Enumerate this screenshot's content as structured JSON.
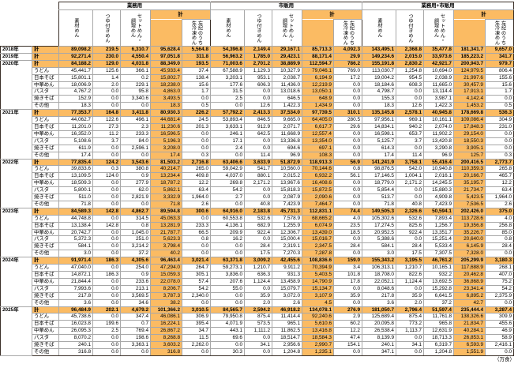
{
  "unit_note": "（万食）",
  "colors": {
    "accent_orange": "#FBBB63",
    "border_dark": "#3B3028",
    "border_light": "#A8A8A8"
  },
  "column_groups": [
    {
      "label": "業務用"
    },
    {
      "label": "市販用"
    },
    {
      "label": "業務用+市販用"
    }
  ],
  "sub_columns": [
    "素材めん",
    "つゆ付きめん",
    "セットめん・\n調理めん",
    "計",
    "左記のうち\n生冷凍めん"
  ],
  "row_categories": [
    "計",
    "うどん",
    "日本そば",
    "中華めん",
    "パスタ",
    "焼きそば",
    "その他"
  ],
  "years": [
    {
      "year": "2018年",
      "rows": [
        {
          "label": "計",
          "values": [
            "89,098.2",
            "219.5",
            "6,310.7",
            "95,628.4",
            "5,564.8",
            "54,396.8",
            "2,149.4",
            "29,167.1",
            "85,713.3",
            "4,092.3",
            "143,495.1",
            "2,368.8",
            "35,477.8",
            "181,341.7",
            "9,657.0"
          ]
        }
      ]
    },
    {
      "year": "2019年",
      "rows": [
        {
          "label": "計",
          "values": [
            "92,271.4",
            "230.0",
            "4,550.4",
            "97,051.8",
            "311.8",
            "56,963.2",
            "1,785.0",
            "29,423.1",
            "88,171.4",
            "29.9",
            "149,234.6",
            "2,015.0",
            "33,973.6",
            "185,223.2",
            "341.7"
          ]
        }
      ]
    },
    {
      "year": "2020年",
      "rows": [
        {
          "label": "計",
          "values": [
            "84,188.2",
            "129.0",
            "4,031.8",
            "88,349.0",
            "193.5",
            "71,003.6",
            "2,701.2",
            "38,889.9",
            "112,594.7",
            "786.2",
            "155,191.8",
            "2,830.2",
            "42,921.7",
            "200,943.7",
            "979.7"
          ]
        },
        {
          "label": "うどん",
          "values": [
            "45,441.7",
            "125.6",
            "366.1",
            "45,933.4",
            "37.4",
            "67,588.9",
            "1,129.3",
            "10,327.9",
            "79,046.1",
            "769.0",
            "113,030.7",
            "1,254.8",
            "10,694.0",
            "124,979.5",
            "806.4"
          ]
        },
        {
          "label": "日本そば",
          "values": [
            "15,801.1",
            "1.4",
            "0.2",
            "15,802.7",
            "138.4",
            "3,203.1",
            "953.1",
            "2,038.7",
            "6,194.9",
            "17.2",
            "19,004.2",
            "954.5",
            "2,038.9",
            "21,997.6",
            "155.6"
          ]
        },
        {
          "label": "中華めん",
          "values": [
            "18,006.9",
            "2.0",
            "229.1",
            "18,238.0",
            "15.6",
            "177.6",
            "606.3",
            "11,436.0",
            "12,219.9",
            "0.0",
            "18,184.6",
            "608.3",
            "11,665.0",
            "30,457.9",
            "15.6"
          ]
        },
        {
          "label": "パスタ",
          "values": [
            "4,767.2",
            "0.0",
            "95.8",
            "4,863.0",
            "1.7",
            "31.5",
            "0.0",
            "13,018.6",
            "13,050.1",
            "0.0",
            "4,798.7",
            "0.0",
            "13,114.4",
            "17,913.1",
            "1.7"
          ]
        },
        {
          "label": "焼きそば",
          "values": [
            "152.9",
            "0.0",
            "3,340.6",
            "3,493.5",
            "0.0",
            "2.5",
            "0.0",
            "646.5",
            "648.9",
            "0.0",
            "155.3",
            "0.0",
            "3,987.1",
            "4,142.4",
            "0.0"
          ]
        },
        {
          "label": "その他",
          "values": [
            "18.3",
            "0.0",
            "0.0",
            "18.3",
            "0.5",
            "0.0",
            "12.6",
            "1,422.3",
            "1,434.9",
            "0.0",
            "18.3",
            "12.6",
            "1,422.3",
            "1,453.2",
            "0.5"
          ]
        }
      ]
    },
    {
      "year": "2021年",
      "rows": [
        {
          "label": "計",
          "values": [
            "77,353.7",
            "164.8",
            "3,411.8",
            "80,930.3",
            "226.2",
            "57,792.2",
            "2,413.3",
            "37,534.0",
            "97,739.5",
            "310.1",
            "135,145.8",
            "2,578.1",
            "40,945.8",
            "178,669.8",
            "536.3"
          ]
        },
        {
          "label": "うどん",
          "values": [
            "44,062.7",
            "122.6",
            "496.1",
            "44,681.4",
            "24.5",
            "53,893.4",
            "846.5",
            "9,665.0",
            "64,405.0",
            "280.5",
            "97,956.1",
            "969.1",
            "10,161.1",
            "109,086.4",
            "304.9"
          ]
        },
        {
          "label": "日本そば",
          "values": [
            "11,201.0",
            "27.3",
            "2.3",
            "11,230.6",
            "201.3",
            "3,633.1",
            "912.9",
            "2,071.7",
            "6,617.7",
            "29.6",
            "14,834.1",
            "940.2",
            "2,074.0",
            "17,848.3",
            "231.0"
          ]
        },
        {
          "label": "中華めん",
          "values": [
            "16,352.0",
            "11.2",
            "233.3",
            "16,596.5",
            "0.0",
            "246.1",
            "642.5",
            "11,668.9",
            "12,557.4",
            "0.0",
            "16,598.1",
            "653.7",
            "11,902.2",
            "29,154.0",
            "0.0"
          ]
        },
        {
          "label": "パスタ",
          "values": [
            "5,108.6",
            "3.7",
            "84.0",
            "5,196.3",
            "0.0",
            "17.1",
            "0.0",
            "13,336.8",
            "13,354.0",
            "0.0",
            "5,125.7",
            "3.7",
            "13,420.8",
            "18,550.3",
            "0.0"
          ]
        },
        {
          "label": "焼きそば",
          "values": [
            "611.9",
            "0.0",
            "2,596.1",
            "3,208.0",
            "0.0",
            "2.4",
            "0.0",
            "694.6",
            "697.1",
            "0.0",
            "614.3",
            "0.0",
            "3,290.8",
            "3,905.1",
            "0.0"
          ]
        },
        {
          "label": "その他",
          "values": [
            "17.4",
            "0.0",
            "0.0",
            "17.4",
            "0.3",
            "0.0",
            "11.4",
            "96.9",
            "108.3",
            "0.0",
            "17.4",
            "11.4",
            "96.9",
            "125.7",
            "0.3"
          ]
        }
      ]
    },
    {
      "year": "2022年",
      "rows": [
        {
          "label": "計",
          "values": [
            "77,835.4",
            "124.2",
            "3,543.6",
            "81,503.2",
            "2,716.8",
            "63,406.6",
            "3,633.9",
            "51,872.9",
            "118,913.3",
            "56.9",
            "141,241.9",
            "3,758.1",
            "55,416.4",
            "200,416.5",
            "2,773.7"
          ]
        },
        {
          "label": "うどん",
          "values": [
            "39,833.6",
            "0.3",
            "380.8",
            "40,214.7",
            "265.0",
            "59,042.9",
            "541.7",
            "10,560.0",
            "70,144.6",
            "0.8",
            "98,876.5",
            "542.0",
            "10,940.8",
            "110,359.3",
            "265.8"
          ]
        },
        {
          "label": "日本そば",
          "values": [
            "13,109.5",
            "124.0",
            "0.9",
            "13,234.4",
            "409.8",
            "4,037.0",
            "880.1",
            "2,015.2",
            "6,932.2",
            "56.1",
            "17,146.5",
            "1,004.1",
            "2,016.1",
            "20,166.7",
            "465.7"
          ]
        },
        {
          "label": "中華めん",
          "values": [
            "18,509.3",
            "0.0",
            "277.9",
            "18,787.2",
            "12.2",
            "269.8",
            "2,171.2",
            "13,967.6",
            "16,408.6",
            "0.0",
            "18,779.0",
            "2,171.2",
            "14,245.5",
            "35,195.7",
            "12.2"
          ]
        },
        {
          "label": "パスタ",
          "values": [
            "5,800.1",
            "0.0",
            "62.0",
            "5,862.1",
            "63.4",
            "54.2",
            "0.0",
            "15,818.3",
            "15,872.5",
            "0.0",
            "5,854.4",
            "0.0",
            "15,880.3",
            "21,734.7",
            "63.4"
          ]
        },
        {
          "label": "焼きそば",
          "values": [
            "511.0",
            "0.0",
            "2,821.9",
            "3,332.9",
            "1,964.0",
            "2.7",
            "0.0",
            "2,087.9",
            "2,090.6",
            "0.0",
            "513.7",
            "0.0",
            "4,909.8",
            "5,423.5",
            "1,964.0"
          ]
        },
        {
          "label": "その他",
          "values": [
            "71.8",
            "0.0",
            "0.0",
            "71.8",
            "2.6",
            "0.0",
            "40.8",
            "7,423.9",
            "7,464.7",
            "0.0",
            "71.8",
            "40.8",
            "7,423.9",
            "7,536.5",
            "2.6"
          ]
        }
      ]
    },
    {
      "year": "2023年",
      "rows": [
        {
          "label": "計",
          "values": [
            "84,589.3",
            "142.8",
            "4,862.7",
            "89,594.8",
            "300.6",
            "64,916.0",
            "2,183.8",
            "45,731.3",
            "112,831.1",
            "74.4",
            "149,505.3",
            "2,326.6",
            "50,594.1",
            "202,426.0",
            "375.0"
          ]
        },
        {
          "label": "うどん",
          "values": [
            "44,748.8",
            "0.0",
            "314.5",
            "45,063.3",
            "0.0",
            "60,553.8",
            "532.6",
            "7,578.9",
            "68,665.2",
            "4.0",
            "105,302.6",
            "532.6",
            "7,893.4",
            "113,728.6",
            "4.0"
          ]
        },
        {
          "label": "日本そば",
          "values": [
            "13,138.4",
            "142.8",
            "0.8",
            "13,281.9",
            "233.3",
            "4,136.1",
            "682.9",
            "1,255.9",
            "6,074.9",
            "23.5",
            "17,274.5",
            "825.6",
            "1,256.7",
            "19,356.8",
            "256.8"
          ]
        },
        {
          "label": "中華めん",
          "values": [
            "20,742.7",
            "0.0",
            "1,045.0",
            "21,787.7",
            "66.5",
            "209.9",
            "922.4",
            "12,306.7",
            "13,439.0",
            "18.5",
            "20,952.5",
            "922.4",
            "13,351.7",
            "35,226.7",
            "85.0"
          ]
        },
        {
          "label": "パスタ",
          "values": [
            "5,372.3",
            "0.0",
            "251.0",
            "5,623.3",
            "0.8",
            "16.2",
            "0.0",
            "15,000.4",
            "15,016.7",
            "0.0",
            "5,388.6",
            "0.0",
            "15,251.4",
            "20,640.0",
            "0.8"
          ]
        },
        {
          "label": "焼きそば",
          "values": [
            "584.1",
            "0.0",
            "3,214.2",
            "3,798.4",
            "0.0",
            "0.0",
            "28.4",
            "2,319.1",
            "2,347.5",
            "28.4",
            "584.1",
            "28.4",
            "5,533.4",
            "6,145.9",
            "28.4"
          ]
        },
        {
          "label": "その他",
          "values": [
            "3.0",
            "0.0",
            "37.2",
            "40.2",
            "0.0",
            "0.0",
            "17.5",
            "7,270.3",
            "7,287.8",
            "0.0",
            "3.0",
            "17.5",
            "7,307.5",
            "7,328.0",
            "0.0"
          ]
        }
      ]
    },
    {
      "year": "2024年",
      "rows": [
        {
          "label": "計",
          "values": [
            "91,971.4",
            "186.3",
            "4,305.6",
            "96,463.4",
            "3,021.4",
            "63,371.8",
            "3,009.2",
            "42,455.6",
            "108,836.6",
            "159.0",
            "155,343.2",
            "3,195.5",
            "46,761.2",
            "205,299.9",
            "3,180.3"
          ]
        },
        {
          "label": "うどん",
          "values": [
            "47,040.0",
            "0.0",
            "254.0",
            "47,294.0",
            "264.7",
            "59,273.1",
            "1,210.7",
            "9,911.2",
            "70,394.9",
            "3.4",
            "106,313.1",
            "1,210.7",
            "10,165.1",
            "117,688.9",
            "268.1"
          ]
        },
        {
          "label": "日本そば",
          "values": [
            "14,872.1",
            "186.3",
            "0.9",
            "15,059.3",
            "305.1",
            "3,836.0",
            "636.3",
            "931.3",
            "5,403.5",
            "101.8",
            "18,708.0",
            "822.6",
            "932.2",
            "20,462.8",
            "407.0"
          ]
        },
        {
          "label": "中華めん",
          "values": [
            "21,844.4",
            "0.0",
            "233.6",
            "22,078.0",
            "57.4",
            "207.6",
            "1,124.4",
            "13,458.9",
            "14,790.9",
            "17.8",
            "22,052.1",
            "1,124.4",
            "13,692.5",
            "36,868.9",
            "75.2"
          ]
        },
        {
          "label": "パスタ",
          "values": [
            "7,993.6",
            "0.0",
            "213.1",
            "8,206.7",
            "54.2",
            "55.0",
            "0.0",
            "15,079.7",
            "15,134.7",
            "0.0",
            "8,048.6",
            "0.0",
            "15,292.8",
            "23,341.4",
            "54.2"
          ]
        },
        {
          "label": "焼きそば",
          "values": [
            "217.8",
            "0.0",
            "3,569.5",
            "3,787.3",
            "2,340.0",
            "0.0",
            "35.9",
            "3,072.0",
            "3,107.9",
            "35.9",
            "217.8",
            "35.9",
            "6,641.5",
            "6,895.2",
            "2,375.9"
          ]
        },
        {
          "label": "その他",
          "values": [
            "3.6",
            "0.0",
            "34.6",
            "38.2",
            "0.0",
            "0.0",
            "2.0",
            "2.6",
            "4.5",
            "0.0",
            "3.6",
            "2.0",
            "37.2",
            "42.7",
            "0.0"
          ]
        }
      ]
    },
    {
      "year": "2025年",
      "rows": [
        {
          "label": "計",
          "values": [
            "96,484.9",
            "202.1",
            "4,679.2",
            "101,366.2",
            "3,010.5",
            "84,565.7",
            "2,594.2",
            "46,918.2",
            "134,078.1",
            "276.9",
            "181,050.7",
            "2,796.4",
            "51,597.4",
            "235,444.4",
            "3,287.4"
          ]
        },
        {
          "label": "うどん",
          "values": [
            "45,738.6",
            "0.0",
            "347.4",
            "46,086.1",
            "306.9",
            "79,950.8",
            "875.4",
            "11,414.4",
            "92,240.6",
            "2.9",
            "125,689.4",
            "875.4",
            "11,761.8",
            "138,326.6",
            "309.9"
          ]
        },
        {
          "label": "日本そば",
          "values": [
            "16,023.8",
            "199.6",
            "0.7",
            "16,224.1",
            "395.4",
            "4,071.9",
            "573.5",
            "965.1",
            "5,610.6",
            "60.2",
            "20,095.8",
            "773.2",
            "965.8",
            "21,834.7",
            "455.6"
          ]
        },
        {
          "label": "中華めん",
          "values": [
            "26,095.3",
            "2.5",
            "769.4",
            "26,867.2",
            "34.7",
            "443.1",
            "1,111.2",
            "11,862.5",
            "13,416.8",
            "12.2",
            "26,538.4",
            "1,113.7",
            "12,631.9",
            "40,284.1",
            "46.9"
          ]
        },
        {
          "label": "パスタ",
          "values": [
            "8,070.2",
            "0.0",
            "198.6",
            "8,268.8",
            "11.5",
            "69.6",
            "0.0",
            "18,514.7",
            "18,584.3",
            "47.4",
            "8,139.9",
            "0.0",
            "18,713.3",
            "26,853.1",
            "58.9"
          ]
        },
        {
          "label": "焼きそば",
          "values": [
            "240.1",
            "0.0",
            "3,363.1",
            "3,603.2",
            "2,262.0",
            "0.0",
            "34.1",
            "2,956.6",
            "2,990.7",
            "154.1",
            "240.1",
            "34.1",
            "6,319.7",
            "6,593.9",
            "2,416.1"
          ]
        },
        {
          "label": "その他",
          "values": [
            "316.8",
            "0.0",
            "0.0",
            "316.8",
            "0.0",
            "30.3",
            "0.0",
            "1,204.8",
            "1,235.1",
            "0.0",
            "347.1",
            "0.0",
            "1,204.8",
            "1,551.9",
            "0.0"
          ]
        }
      ]
    }
  ]
}
